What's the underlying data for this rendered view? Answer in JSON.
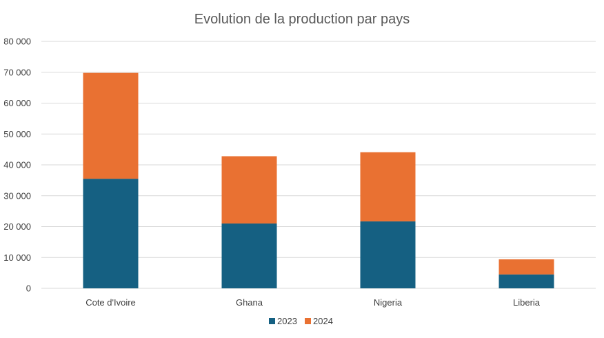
{
  "chart_data": {
    "type": "bar",
    "stacked": true,
    "title": "Evolution de la production par pays",
    "xlabel": "",
    "ylabel": "",
    "categories": [
      "Cote d'Ivoire",
      "Ghana",
      "Nigeria",
      "Liberia"
    ],
    "series": [
      {
        "name": "2023",
        "color": "#156082",
        "values": [
          35500,
          21000,
          21700,
          4500
        ]
      },
      {
        "name": "2024",
        "color": "#E97132",
        "values": [
          34300,
          21800,
          22400,
          4900
        ]
      }
    ],
    "ylim": [
      0,
      80000
    ],
    "yticks": [
      0,
      10000,
      20000,
      30000,
      40000,
      50000,
      60000,
      70000,
      80000
    ],
    "ytick_labels": [
      "0",
      "10 000",
      "20 000",
      "30 000",
      "40 000",
      "50 000",
      "60 000",
      "70 000",
      "80 000"
    ],
    "grid": true,
    "legend_position": "bottom"
  }
}
